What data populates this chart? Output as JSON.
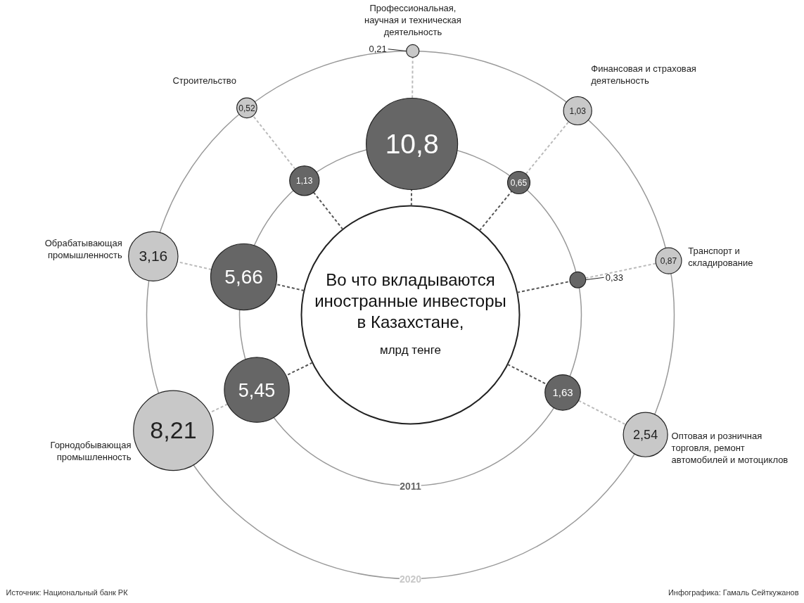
{
  "chart_data": {
    "type": "other",
    "title": "Во что вкладываются иностранные инвесторы в Казахстане,",
    "subtitle": "млрд тенге",
    "categories": [
      "Горнодобывающая промышленность",
      "Обрабатывающая промышленность",
      "Строительство",
      "Профессиональная, научная и техническая деятельность",
      "Финансовая и страховая деятельность",
      "Транспорт и складирование",
      "Оптовая и розничная торговля, ремонт автомобилей и мотоциклов"
    ],
    "series": [
      {
        "name": "2011",
        "color": "#666666",
        "values": [
          5.45,
          5.66,
          1.13,
          10.8,
          0.65,
          0.33,
          1.63
        ],
        "value_labels": [
          "5,45",
          "5,66",
          "1,13",
          "10,8",
          "0,65",
          "0,33",
          "1,63"
        ]
      },
      {
        "name": "2020",
        "color": "#c8c8c8",
        "values": [
          8.21,
          3.16,
          0.52,
          0.21,
          1.03,
          0.87,
          2.54
        ],
        "value_labels": [
          "8,21",
          "3,16",
          "0,52",
          "0,21",
          "1,03",
          "0,87",
          "2,54"
        ]
      }
    ],
    "annotations": [
      "Источник: Национальный банк РК",
      "Инфографика: Гамаль Сейткужанов"
    ]
  }
}
